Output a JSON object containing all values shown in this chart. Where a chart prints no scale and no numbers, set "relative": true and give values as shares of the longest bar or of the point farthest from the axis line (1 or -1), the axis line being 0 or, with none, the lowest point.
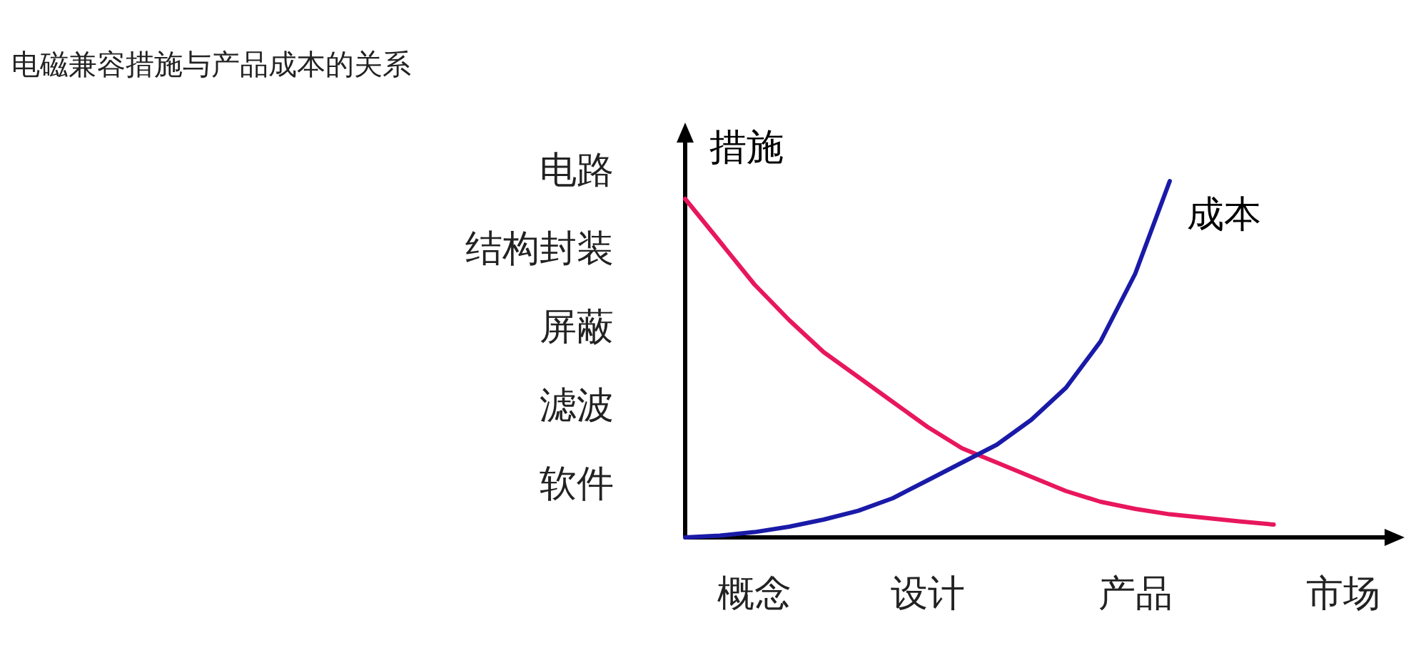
{
  "chart_data": {
    "type": "line",
    "title": "电磁兼容措施与产品成本的关系",
    "ylabel": "措施",
    "relative": true,
    "legend": false,
    "marker": "none",
    "line_style": "solid",
    "categories": [
      null,
      null,
      "概念",
      null,
      null,
      null,
      null,
      "设计",
      null,
      null,
      null,
      null,
      null,
      "产品",
      null,
      null,
      null,
      null,
      null,
      "市场",
      null
    ],
    "annotations": [
      "电路",
      "结构封装",
      "屏蔽",
      "滤波",
      "软件"
    ],
    "series": [
      {
        "color": "#e8175d",
        "values": [
          0.95,
          0.83,
          0.71,
          0.61,
          0.52,
          0.45,
          0.38,
          0.31,
          0.25,
          0.21,
          0.17,
          0.13,
          0.1,
          0.08,
          0.065,
          0.055,
          0.045,
          0.036,
          null,
          null,
          null
        ]
      },
      {
        "name": "成本",
        "color": "#1a1aa8",
        "values": [
          0,
          0.005,
          0.015,
          0.03,
          0.05,
          0.075,
          0.11,
          0.16,
          0.21,
          0.26,
          0.33,
          0.42,
          0.55,
          0.74,
          1,
          null,
          null,
          null,
          null,
          null,
          null
        ]
      }
    ]
  }
}
